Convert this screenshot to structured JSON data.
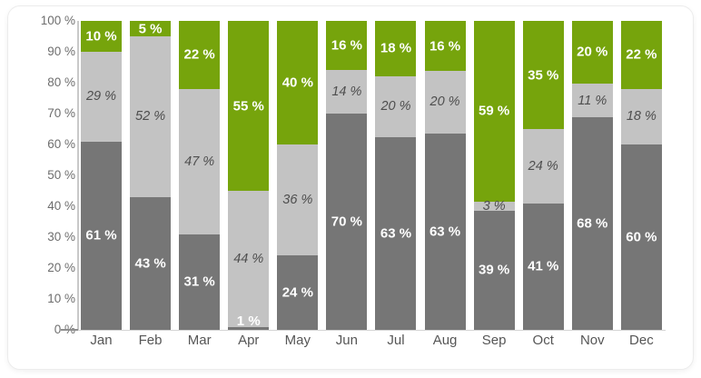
{
  "chart_data": {
    "type": "bar",
    "stacked": true,
    "percent_stacked": true,
    "title": "",
    "xlabel": "",
    "ylabel": "",
    "unit": "%",
    "grid": false,
    "legend": false,
    "ylim": [
      0,
      100
    ],
    "categories": [
      "Jan",
      "Feb",
      "Mar",
      "Apr",
      "May",
      "Jun",
      "Jul",
      "Aug",
      "Sep",
      "Oct",
      "Nov",
      "Dec"
    ],
    "series": [
      {
        "name": "dark-gray",
        "color": "#767676",
        "label_style": "white-bold",
        "values": [
          61,
          43,
          31,
          1,
          24,
          70,
          63,
          63,
          39,
          41,
          68,
          60
        ],
        "labels": [
          "61 %",
          "43 %",
          "31 %",
          "1 %",
          "24 %",
          "70 %",
          "63 %",
          "63 %",
          "39 %",
          "41 %",
          "68 %",
          "60 %"
        ]
      },
      {
        "name": "light-gray",
        "color": "#c3c3c3",
        "label_style": "gray-italic",
        "values": [
          29,
          52,
          47,
          44,
          36,
          14,
          20,
          20,
          3,
          24,
          11,
          18
        ],
        "labels": [
          "29 %",
          "52 %",
          "47 %",
          "44 %",
          "36 %",
          "14 %",
          "20 %",
          "20 %",
          "3 %",
          "24 %",
          "11 %",
          "18 %"
        ]
      },
      {
        "name": "green",
        "color": "#76a40c",
        "label_style": "white-bold",
        "values": [
          10,
          5,
          22,
          55,
          40,
          16,
          18,
          16,
          59,
          35,
          20,
          22
        ],
        "labels": [
          "10 %",
          "5 %",
          "22 %",
          "55 %",
          "40 %",
          "16 %",
          "18 %",
          "16 %",
          "59 %",
          "35 %",
          "20 %",
          "22 %"
        ]
      }
    ],
    "y_ticks": [
      "100 %",
      "90 %",
      "80 %",
      "70 %",
      "60 %",
      "50 %",
      "40 %",
      "30 %",
      "20 %",
      "10 %",
      "0 %"
    ],
    "axis_colors": {
      "axis_line": "#c9c9c9",
      "baseline": "#d4d4d4",
      "zero_tick": "#8f8f8f",
      "y_tick_label": "#6e6e6e",
      "x_label": "#565656"
    }
  }
}
